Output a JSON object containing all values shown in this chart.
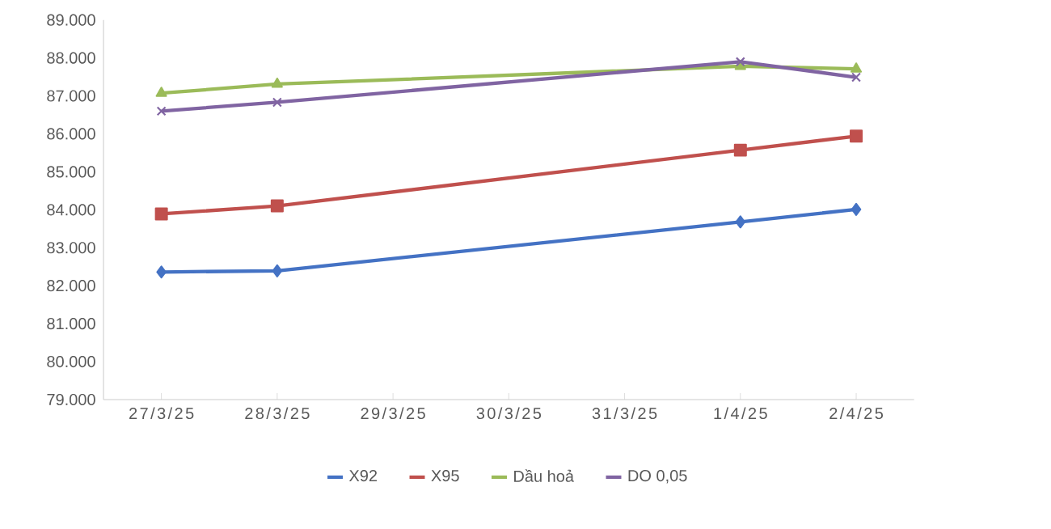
{
  "chart_data": {
    "type": "line",
    "categories": [
      "27/3/25",
      "28/3/25",
      "29/3/25",
      "30/3/25",
      "31/3/25",
      "1/4/25",
      "2/4/25"
    ],
    "series": [
      {
        "name": "X92",
        "color": "#4472c4",
        "marker": "diamond",
        "values": [
          82360,
          82390,
          null,
          null,
          null,
          83680,
          84010
        ]
      },
      {
        "name": "X95",
        "color": "#c0504d",
        "marker": "square",
        "values": [
          83890,
          84100,
          null,
          null,
          null,
          85570,
          85940
        ]
      },
      {
        "name": "Dầu hoả",
        "color": "#9bbb59",
        "marker": "triangle",
        "values": [
          87070,
          87310,
          null,
          null,
          null,
          87780,
          87710
        ]
      },
      {
        "name": "DO 0,05",
        "color": "#8064a2",
        "marker": "cross",
        "values": [
          86600,
          86830,
          null,
          null,
          null,
          87900,
          87490
        ]
      }
    ],
    "ylim": [
      79000,
      89000
    ],
    "yticks": [
      {
        "value": 79000,
        "label": "79.000"
      },
      {
        "value": 80000,
        "label": "80.000"
      },
      {
        "value": 81000,
        "label": "81.000"
      },
      {
        "value": 82000,
        "label": "82.000"
      },
      {
        "value": 83000,
        "label": "83.000"
      },
      {
        "value": 84000,
        "label": "84.000"
      },
      {
        "value": 85000,
        "label": "85.000"
      },
      {
        "value": 86000,
        "label": "86.000"
      },
      {
        "value": 87000,
        "label": "87.000"
      },
      {
        "value": 88000,
        "label": "88.000"
      },
      {
        "value": 89000,
        "label": "89.000"
      }
    ],
    "grid": false,
    "legend": "bottom",
    "line_style": "solid"
  }
}
